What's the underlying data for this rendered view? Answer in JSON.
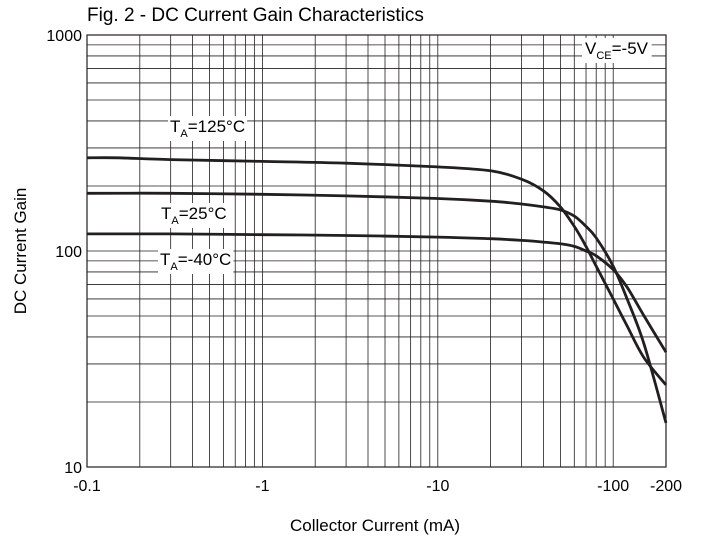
{
  "chart_data": {
    "type": "line",
    "title": "Fig. 2 - DC Current Gain Characteristics",
    "xlabel": "Collector Current (mA)",
    "ylabel": "DC Current Gain",
    "x_scale": "log",
    "y_scale": "log",
    "xlim": [
      -0.1,
      -200
    ],
    "ylim": [
      10,
      1000
    ],
    "x_ticks": [
      -0.1,
      -1,
      -10,
      -100,
      -200
    ],
    "x_tick_labels": [
      "-0.1",
      "-1",
      "-10",
      "-100",
      "-200"
    ],
    "y_ticks": [
      10,
      100,
      1000
    ],
    "y_tick_labels": [
      "10",
      "100",
      "1000"
    ],
    "grid": true,
    "condition": {
      "main": "V",
      "sub": "CE",
      "rest": "=-5V"
    },
    "series": [
      {
        "name": {
          "main": "T",
          "sub": "A",
          "rest": "=125°C"
        },
        "color": "#231f20",
        "x": [
          -0.1,
          -0.15,
          -0.3,
          -1,
          -3,
          -10,
          -20,
          -30,
          -40,
          -50,
          -60,
          -70,
          -80,
          -100,
          -120,
          -150,
          -200
        ],
        "y": [
          270,
          270,
          265,
          260,
          255,
          245,
          235,
          215,
          190,
          160,
          130,
          105,
          85,
          60,
          45,
          32,
          24
        ]
      },
      {
        "name": {
          "main": "T",
          "sub": "A",
          "rest": "=25°C"
        },
        "color": "#231f20",
        "x": [
          -0.1,
          -0.3,
          -1,
          -3,
          -10,
          -20,
          -30,
          -40,
          -50,
          -60,
          -70,
          -80,
          -100,
          -120,
          -150,
          -200
        ],
        "y": [
          185,
          185,
          183,
          180,
          175,
          170,
          165,
          160,
          155,
          145,
          130,
          115,
          85,
          60,
          37,
          16
        ]
      },
      {
        "name": {
          "main": "T",
          "sub": "A",
          "rest": "=-40°C"
        },
        "color": "#231f20",
        "x": [
          -0.1,
          -0.3,
          -1,
          -3,
          -10,
          -20,
          -30,
          -40,
          -50,
          -60,
          -70,
          -80,
          -100,
          -120,
          -150,
          -200
        ],
        "y": [
          120,
          120,
          119,
          118,
          116,
          114,
          112,
          110,
          108,
          105,
          100,
          95,
          82,
          68,
          50,
          34
        ]
      }
    ]
  }
}
